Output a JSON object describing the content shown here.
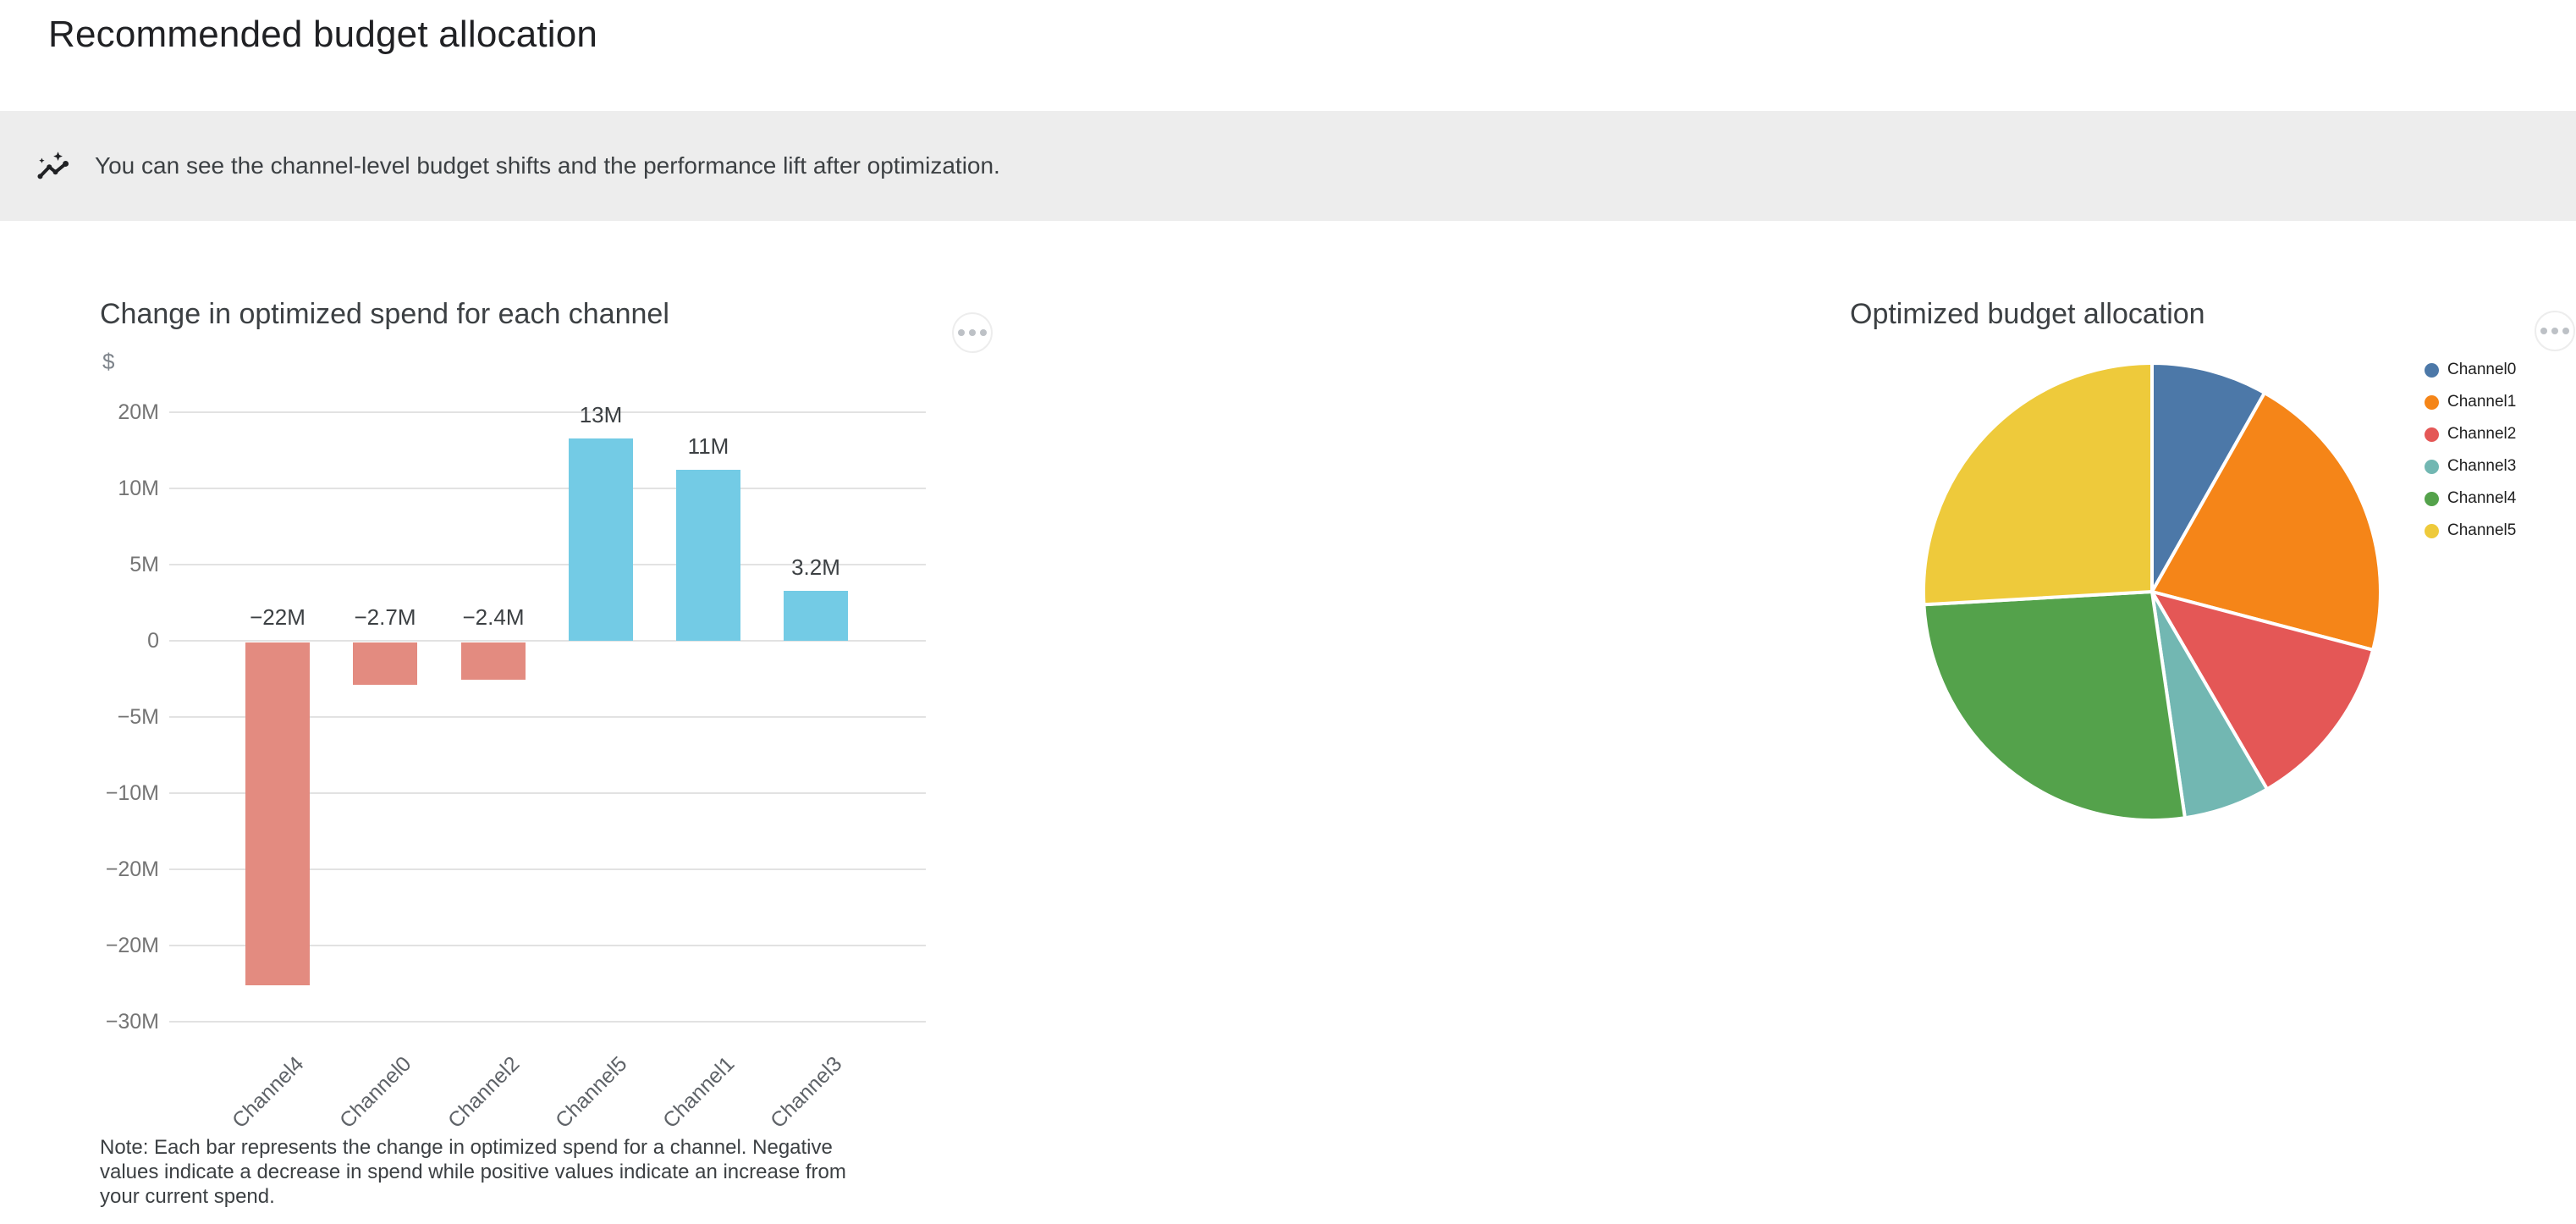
{
  "page": {
    "title": "Recommended budget allocation",
    "background": "#ffffff"
  },
  "banner": {
    "icon": "insights-icon",
    "text": "You can see the channel-level budget shifts and the performance lift after optimization.",
    "background": "#ededed"
  },
  "chart_data": [
    {
      "type": "bar",
      "title": "Change in optimized spend for each channel",
      "unit_label": "$",
      "categories": [
        "Channel4",
        "Channel0",
        "Channel2",
        "Channel5",
        "Channel1",
        "Channel3"
      ],
      "values_millions": [
        -22,
        -2.7,
        -2.4,
        13,
        11,
        3.2
      ],
      "value_labels": [
        "−22M",
        "−2.7M",
        "−2.4M",
        "13M",
        "11M",
        "3.2M"
      ],
      "y_tick_labels": [
        "20M",
        "10M",
        "5M",
        "0",
        "−5M",
        "−10M",
        "−20M",
        "−20M",
        "−30M"
      ],
      "ylim_millions": [
        -25,
        15
      ],
      "grid": true,
      "negative_color": "#e38b80",
      "positive_color": "#73cbe5",
      "note_lines": [
        "Note: Each bar represents the change in optimized spend for a channel. Negative",
        "values indicate a decrease in spend while positive values indicate an increase from",
        "your current spend."
      ]
    },
    {
      "type": "pie",
      "title": "Optimized budget allocation",
      "legend_position": "right",
      "labels": [
        "Channel0",
        "Channel1",
        "Channel2",
        "Channel3",
        "Channel4",
        "Channel5"
      ],
      "values_percent": [
        8.2,
        20.9,
        12.5,
        6.1,
        26.4,
        25.9
      ],
      "colors": [
        "#4c78a8",
        "#f58518",
        "#e45756",
        "#72b7b2",
        "#54a24b",
        "#eeca3b"
      ]
    }
  ],
  "icons": {
    "more_options": "more-options-icon",
    "banner": "insights-icon"
  }
}
